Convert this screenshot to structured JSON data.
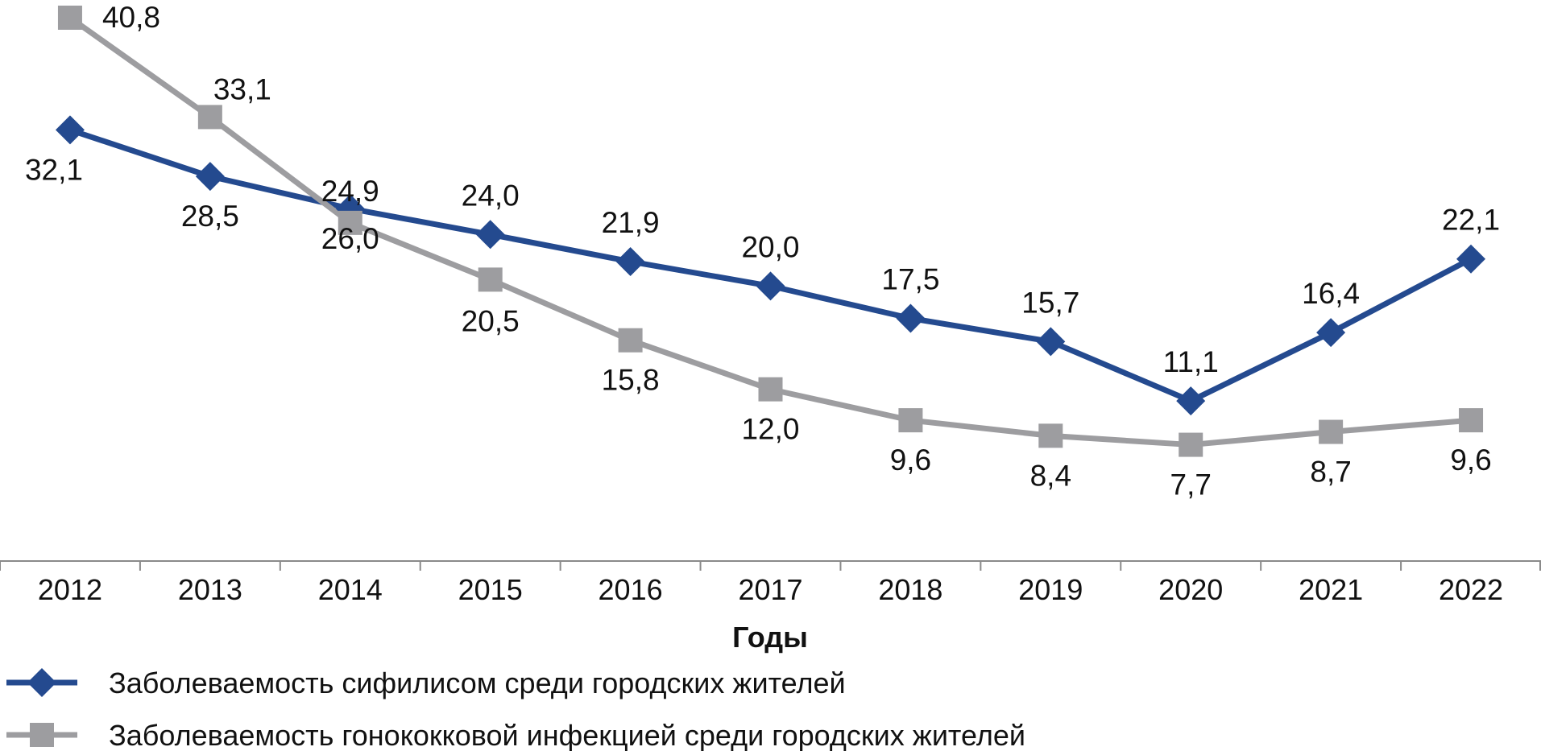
{
  "chart_data": {
    "type": "line",
    "title": "",
    "xlabel": "Годы",
    "ylabel": "",
    "categories": [
      "2012",
      "2013",
      "2014",
      "2015",
      "2016",
      "2017",
      "2018",
      "2019",
      "2020",
      "2021",
      "2022"
    ],
    "ylim": [
      0,
      42
    ],
    "grid": false,
    "legend_position": "bottom-left",
    "series": [
      {
        "name": "Заболеваемость сифилисом среди городских жителей",
        "values": [
          32.1,
          28.5,
          26.0,
          24.0,
          21.9,
          20.0,
          17.5,
          15.7,
          11.1,
          16.4,
          22.1
        ],
        "labels": [
          "32,1",
          "28,5",
          "26,0",
          "24,0",
          "21,9",
          "20,0",
          "17,5",
          "15,7",
          "11,1",
          "16,4",
          "22,1"
        ],
        "color": "#244a8f",
        "marker": "diamond"
      },
      {
        "name": "Заболеваемость гонококковой инфекцией среди городских жителей",
        "values": [
          40.8,
          33.1,
          24.9,
          20.5,
          15.8,
          12.0,
          9.6,
          8.4,
          7.7,
          8.7,
          9.6
        ],
        "labels": [
          "40,8",
          "33,1",
          "24,9",
          "20,5",
          "15,8",
          "12,0",
          "9,6",
          "8,4",
          "7,7",
          "8,7",
          "9,6"
        ],
        "color": "#9d9da0",
        "marker": "square"
      }
    ]
  }
}
